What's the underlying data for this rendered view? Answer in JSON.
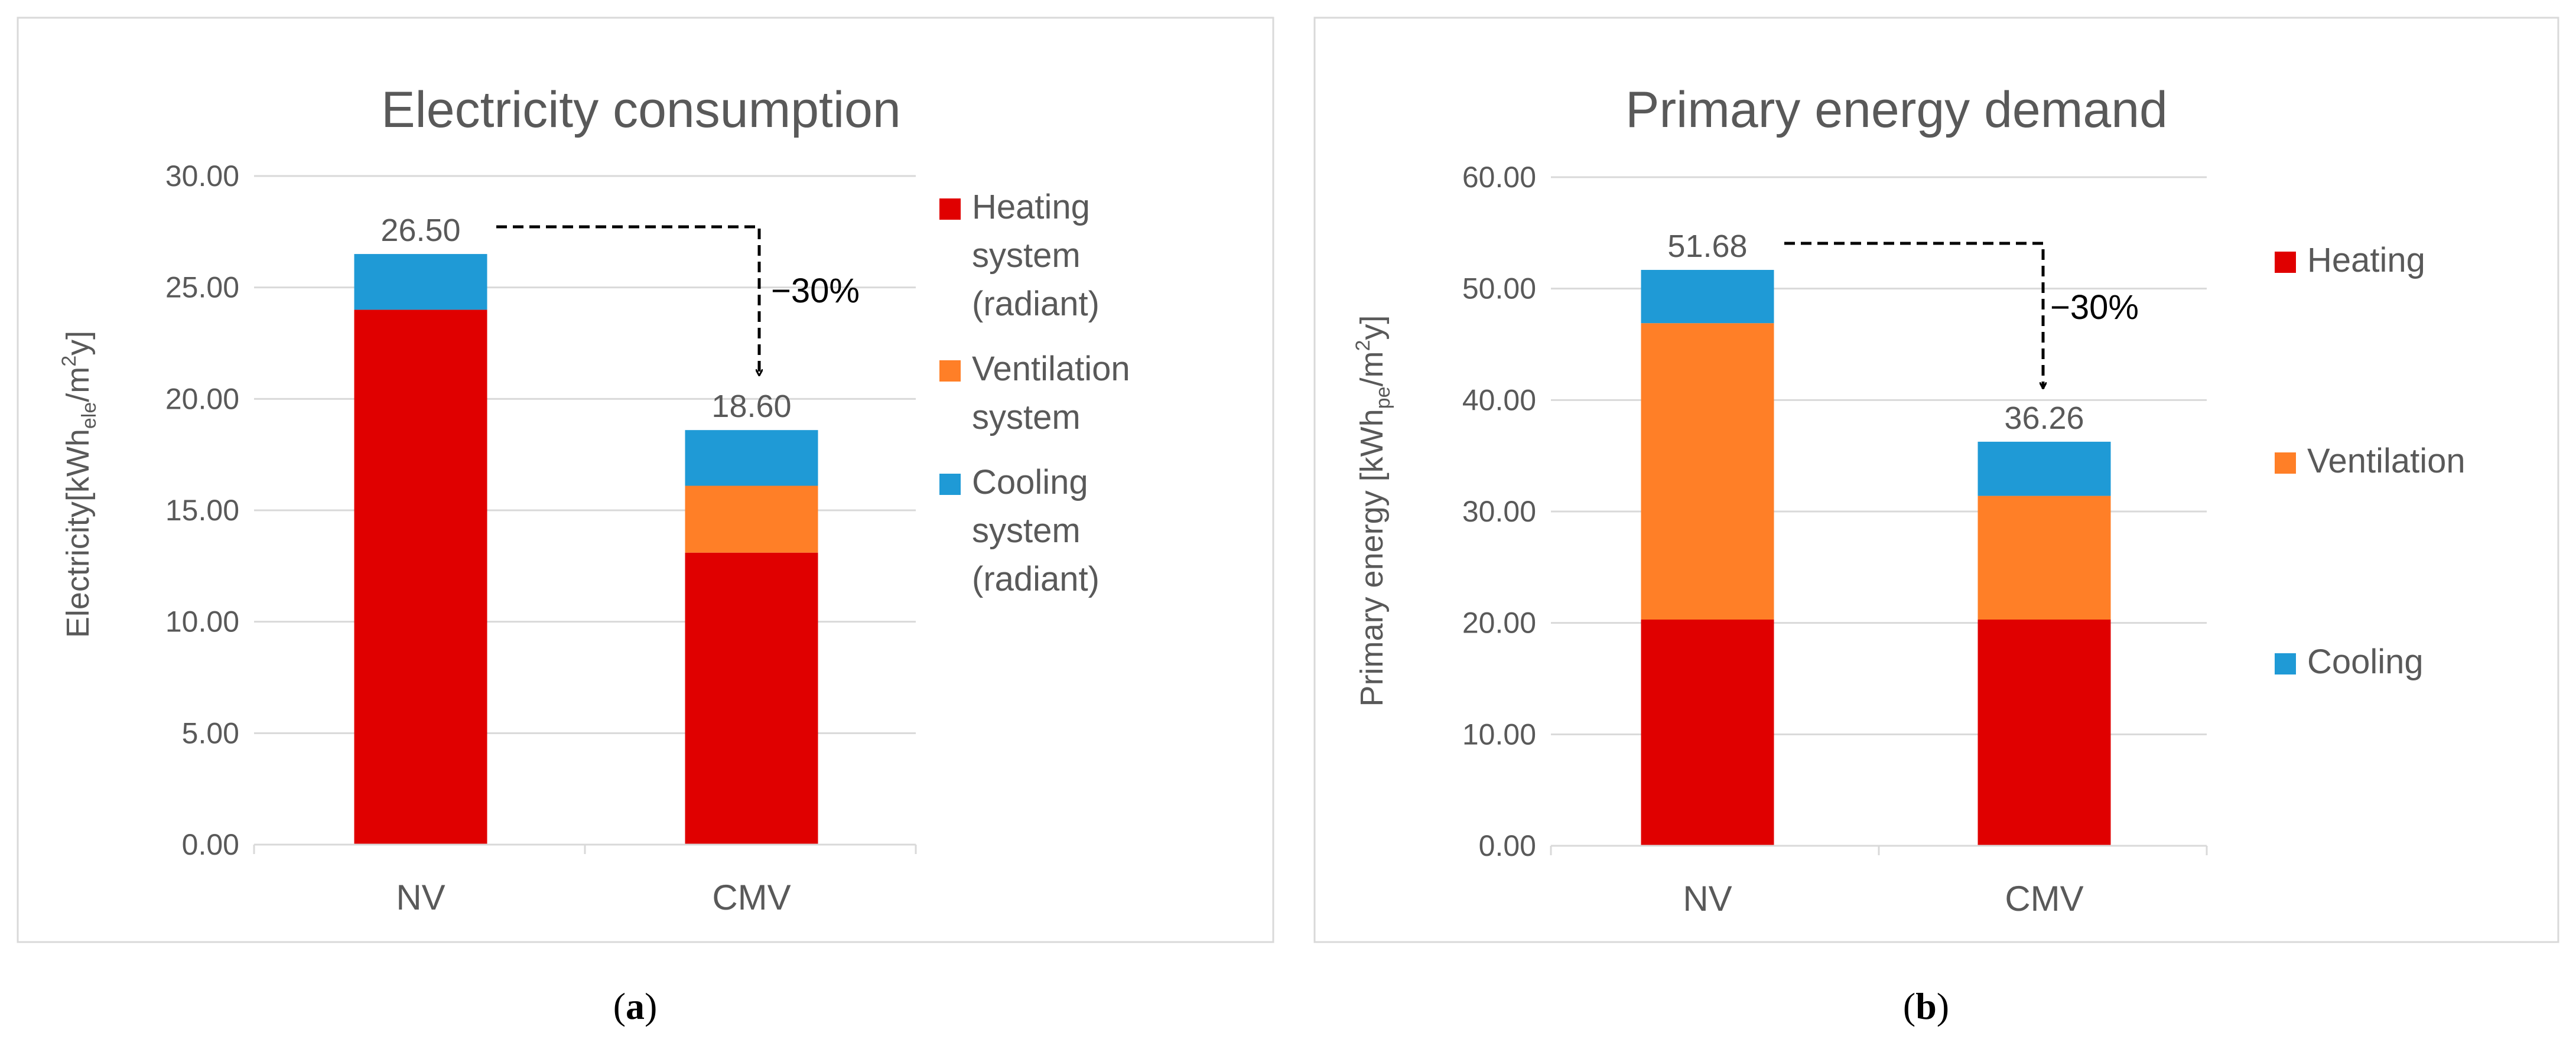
{
  "chart_data": [
    {
      "type": "bar",
      "stacked": true,
      "title": "Electricity consumption",
      "ylabel": {
        "base": "Electricity[kWh",
        "sub": "ele",
        "mid": "/m",
        "sup": "2",
        "tail": "y]"
      },
      "categories": [
        "NV",
        "CMV"
      ],
      "ylim": [
        0,
        30
      ],
      "yticks": [
        "0.00",
        "5.00",
        "10.00",
        "15.00",
        "20.00",
        "25.00",
        "30.00"
      ],
      "series": [
        {
          "name": "Heating system (radiant)",
          "legend_lines": [
            "Heating",
            "system",
            "(radiant)"
          ],
          "color": "#e00000",
          "values": [
            24.0,
            13.1
          ]
        },
        {
          "name": "Ventilation system",
          "legend_lines": [
            "Ventilation",
            "system"
          ],
          "color": "#ff7f27",
          "values": [
            0.0,
            3.0
          ]
        },
        {
          "name": "Cooling system (radiant)",
          "legend_lines": [
            "Cooling",
            "system",
            "(radiant)"
          ],
          "color": "#1f9ad6",
          "values": [
            2.5,
            2.5
          ]
        }
      ],
      "totals": [
        "26.50",
        "18.60"
      ],
      "annotation": "−30%",
      "caption": {
        "letter": "a"
      },
      "grid": true,
      "legend_position": "right"
    },
    {
      "type": "bar",
      "stacked": true,
      "title": "Primary energy demand",
      "ylabel": {
        "base": "Primary energy [kWh",
        "sub": "pe",
        "mid": "/m",
        "sup": "2",
        "tail": "y]"
      },
      "categories": [
        "NV",
        "CMV"
      ],
      "ylim": [
        0,
        60
      ],
      "yticks": [
        "0.00",
        "10.00",
        "20.00",
        "30.00",
        "40.00",
        "50.00",
        "60.00"
      ],
      "series": [
        {
          "name": "Heating",
          "legend_lines": [
            "Heating"
          ],
          "color": "#e00000",
          "values": [
            20.3,
            20.3
          ]
        },
        {
          "name": "Ventilation",
          "legend_lines": [
            "Ventilation"
          ],
          "color": "#ff7f27",
          "values": [
            26.6,
            11.1
          ]
        },
        {
          "name": "Cooling",
          "legend_lines": [
            "Cooling"
          ],
          "color": "#1f9ad6",
          "values": [
            4.78,
            4.86
          ]
        }
      ],
      "totals": [
        "51.68",
        "36.26"
      ],
      "annotation": "−30%",
      "caption": {
        "letter": "b"
      },
      "grid": true,
      "legend_position": "right"
    }
  ]
}
